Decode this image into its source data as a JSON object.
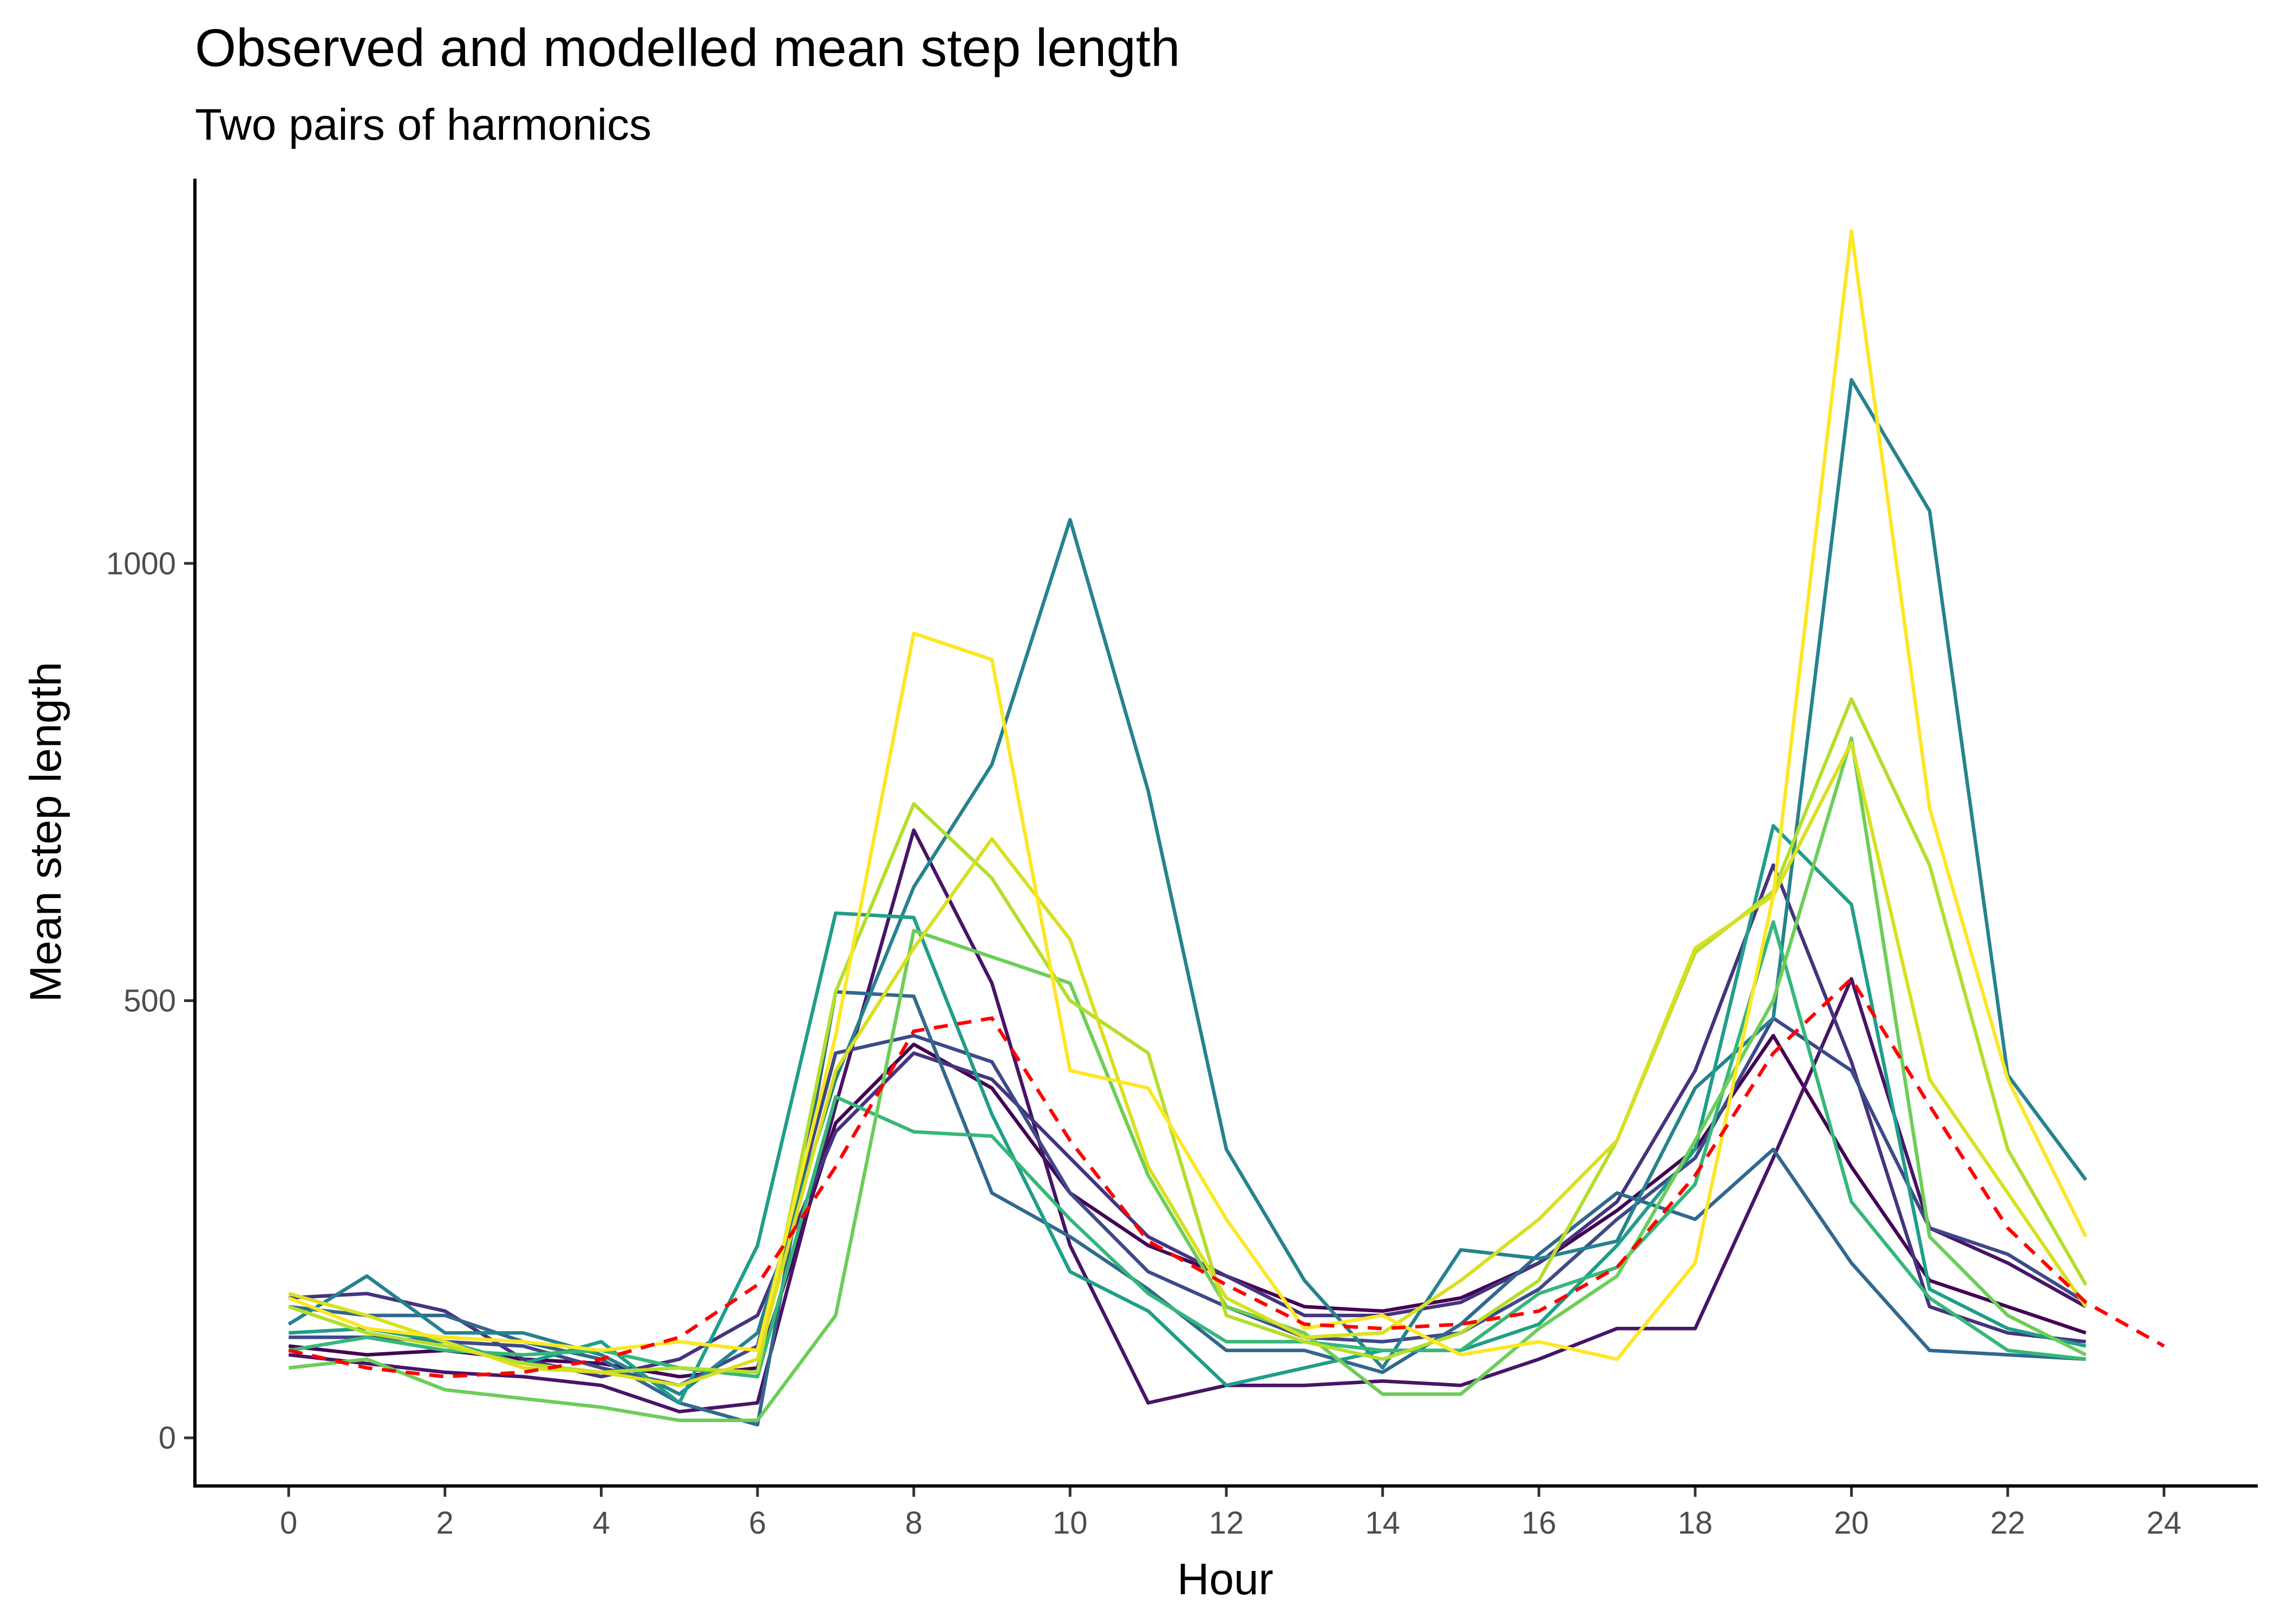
{
  "chart_data": {
    "type": "line",
    "title": "Observed and modelled mean step length",
    "subtitle": "Two pairs of harmonics",
    "xlabel": "Hour",
    "ylabel": "Mean step length",
    "xlim": [
      -1.2,
      25.2
    ],
    "ylim": [
      -55,
      1440
    ],
    "xticks": [
      "0",
      "2",
      "4",
      "6",
      "8",
      "10",
      "12",
      "14",
      "16",
      "18",
      "20",
      "22",
      "24"
    ],
    "yticks": [
      "0",
      "500",
      "1000"
    ],
    "grid": false,
    "legend": "none",
    "series": [
      {
        "color": "#440154",
        "x": [
          0,
          1,
          2,
          3,
          4,
          5,
          6,
          7,
          8,
          9,
          10,
          11,
          12,
          13,
          14,
          15,
          16,
          17,
          18,
          19,
          20,
          21,
          22,
          23
        ],
        "y": [
          105,
          95,
          100,
          90,
          85,
          70,
          80,
          360,
          450,
          400,
          280,
          220,
          185,
          150,
          145,
          160,
          200,
          260,
          330,
          460,
          310,
          180,
          150,
          120
        ]
      },
      {
        "color": "#471467",
        "x": [
          0,
          1,
          2,
          3,
          4,
          5,
          6,
          7,
          8,
          9,
          10,
          11,
          12,
          13,
          14,
          15,
          16,
          17,
          18,
          19,
          20,
          21,
          22,
          23
        ],
        "y": [
          95,
          85,
          75,
          70,
          60,
          30,
          40,
          380,
          695,
          520,
          220,
          40,
          60,
          60,
          65,
          60,
          90,
          125,
          125,
          320,
          525,
          240,
          200,
          150
        ]
      },
      {
        "color": "#46337e",
        "x": [
          0,
          1,
          2,
          3,
          4,
          5,
          6,
          7,
          8,
          9,
          10,
          11,
          12,
          13,
          14,
          15,
          16,
          17,
          18,
          19,
          20,
          21,
          22,
          23
        ],
        "y": [
          160,
          165,
          145,
          90,
          70,
          90,
          140,
          350,
          440,
          410,
          320,
          230,
          185,
          140,
          140,
          155,
          200,
          270,
          420,
          655,
          430,
          150,
          120,
          110
        ]
      },
      {
        "color": "#3e4989",
        "x": [
          0,
          1,
          2,
          3,
          4,
          5,
          6,
          7,
          8,
          9,
          10,
          11,
          12,
          13,
          14,
          15,
          16,
          17,
          18,
          19,
          20,
          21,
          22,
          23
        ],
        "y": [
          115,
          115,
          110,
          105,
          80,
          60,
          105,
          440,
          460,
          430,
          280,
          190,
          150,
          115,
          110,
          120,
          170,
          250,
          320,
          480,
          420,
          240,
          210,
          155
        ]
      },
      {
        "color": "#31688e",
        "x": [
          0,
          1,
          2,
          3,
          4,
          5,
          6,
          7,
          8,
          9,
          10,
          11,
          12,
          13,
          14,
          15,
          16,
          17,
          18,
          19,
          20,
          21,
          22,
          23
        ],
        "y": [
          150,
          140,
          140,
          110,
          90,
          40,
          15,
          510,
          505,
          280,
          230,
          170,
          100,
          100,
          75,
          130,
          210,
          280,
          250,
          330,
          200,
          100,
          95,
          90
        ]
      },
      {
        "color": "#26828e",
        "x": [
          0,
          1,
          2,
          3,
          4,
          5,
          6,
          7,
          8,
          9,
          10,
          11,
          12,
          13,
          14,
          15,
          16,
          17,
          18,
          19,
          20,
          21,
          22,
          23
        ],
        "y": [
          130,
          185,
          120,
          120,
          95,
          50,
          120,
          410,
          630,
          770,
          1050,
          740,
          330,
          180,
          80,
          215,
          205,
          225,
          400,
          480,
          1210,
          1060,
          415,
          295
        ]
      },
      {
        "color": "#1f9e89",
        "x": [
          0,
          1,
          2,
          3,
          4,
          5,
          6,
          7,
          8,
          9,
          10,
          11,
          12,
          13,
          14,
          15,
          16,
          17,
          18,
          19,
          20,
          21,
          22,
          23
        ],
        "y": [
          120,
          125,
          110,
          85,
          110,
          40,
          220,
          600,
          595,
          370,
          190,
          145,
          60,
          80,
          100,
          100,
          130,
          220,
          330,
          700,
          610,
          170,
          125,
          105
        ]
      },
      {
        "color": "#35b779",
        "x": [
          0,
          1,
          2,
          3,
          4,
          5,
          6,
          7,
          8,
          9,
          10,
          11,
          12,
          13,
          14,
          15,
          16,
          17,
          18,
          19,
          20,
          21,
          22,
          23
        ],
        "y": [
          100,
          115,
          100,
          95,
          100,
          80,
          70,
          390,
          350,
          345,
          250,
          165,
          110,
          110,
          100,
          100,
          165,
          195,
          290,
          590,
          270,
          160,
          100,
          90
        ]
      },
      {
        "color": "#6dcd59",
        "x": [
          0,
          1,
          2,
          3,
          4,
          5,
          6,
          7,
          8,
          9,
          10,
          11,
          12,
          13,
          14,
          15,
          16,
          17,
          18,
          19,
          20,
          21,
          22,
          23
        ],
        "y": [
          80,
          90,
          55,
          45,
          35,
          20,
          20,
          140,
          580,
          550,
          520,
          300,
          150,
          120,
          50,
          50,
          125,
          185,
          340,
          500,
          800,
          230,
          140,
          95
        ]
      },
      {
        "color": "#b4de2c",
        "x": [
          0,
          1,
          2,
          3,
          4,
          5,
          6,
          7,
          8,
          9,
          10,
          11,
          12,
          13,
          14,
          15,
          16,
          17,
          18,
          19,
          20,
          21,
          22,
          23
        ],
        "y": [
          150,
          120,
          105,
          85,
          75,
          80,
          75,
          510,
          725,
          640,
          500,
          440,
          140,
          110,
          90,
          120,
          180,
          340,
          555,
          625,
          845,
          655,
          330,
          175
        ]
      },
      {
        "color": "#d9e021",
        "x": [
          0,
          1,
          2,
          3,
          4,
          5,
          6,
          7,
          8,
          9,
          10,
          11,
          12,
          13,
          14,
          15,
          16,
          17,
          18,
          19,
          20,
          21,
          22,
          23
        ],
        "y": [
          165,
          140,
          110,
          80,
          75,
          60,
          90,
          420,
          560,
          685,
          570,
          310,
          160,
          115,
          120,
          180,
          250,
          340,
          560,
          620,
          795,
          410,
          280,
          150
        ]
      },
      {
        "color": "#fde725",
        "x": [
          0,
          1,
          2,
          3,
          4,
          5,
          6,
          7,
          8,
          9,
          10,
          11,
          12,
          13,
          14,
          15,
          16,
          17,
          18,
          19,
          20,
          21,
          22,
          23
        ],
        "y": [
          160,
          125,
          115,
          110,
          100,
          110,
          100,
          460,
          920,
          890,
          420,
          400,
          250,
          125,
          140,
          95,
          110,
          90,
          200,
          620,
          1380,
          720,
          410,
          230
        ]
      },
      {
        "color": "#ff0000",
        "dashed": true,
        "x": [
          0,
          1,
          2,
          3,
          4,
          5,
          6,
          7,
          8,
          9,
          10,
          11,
          12,
          13,
          14,
          15,
          16,
          17,
          18,
          19,
          20,
          21,
          22,
          23,
          24
        ],
        "y": [
          100,
          80,
          70,
          75,
          90,
          115,
          175,
          310,
          465,
          480,
          340,
          225,
          175,
          130,
          125,
          130,
          145,
          195,
          300,
          440,
          525,
          380,
          240,
          155,
          105
        ]
      }
    ]
  }
}
